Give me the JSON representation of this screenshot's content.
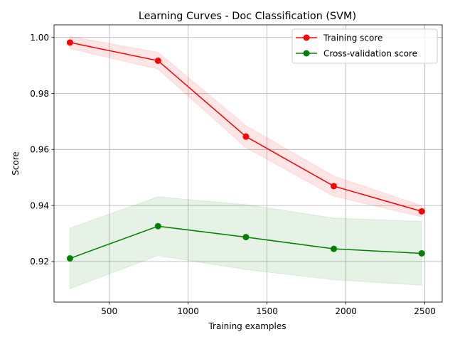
{
  "chart_data": {
    "type": "line",
    "title": "Learning Curves - Doc Classification (SVM)",
    "xlabel": "Training examples",
    "ylabel": "Score",
    "xlim": [
      150,
      2610
    ],
    "ylim": [
      0.9055,
      1.0045
    ],
    "xticks": [
      500,
      1000,
      1500,
      2000,
      2500
    ],
    "xtick_labels": [
      "500",
      "1000",
      "1500",
      "2000",
      "2500"
    ],
    "yticks": [
      0.92,
      0.94,
      0.96,
      0.98,
      1.0
    ],
    "ytick_labels": [
      "0.92",
      "0.94",
      "0.96",
      "0.98",
      "1.00"
    ],
    "grid": true,
    "legend_position": "top-right",
    "x": [
      251,
      809,
      1366,
      1923,
      2480
    ],
    "series": [
      {
        "name": "Training score",
        "color": "#ff0000",
        "band_color": "#ff0000",
        "marker": "circle",
        "values": [
          0.9982,
          0.9917,
          0.9646,
          0.9469,
          0.9379
        ],
        "band_upper": [
          1.0004,
          0.9947,
          0.9685,
          0.9505,
          0.9399
        ],
        "band_lower": [
          0.996,
          0.9887,
          0.9607,
          0.9433,
          0.9359
        ]
      },
      {
        "name": "Cross-validation score",
        "color": "#008000",
        "band_color": "#008000",
        "marker": "circle",
        "values": [
          0.9211,
          0.9326,
          0.9287,
          0.9245,
          0.9229
        ],
        "band_upper": [
          0.9319,
          0.9431,
          0.9403,
          0.9355,
          0.9343
        ],
        "band_lower": [
          0.9103,
          0.9221,
          0.9171,
          0.9135,
          0.9115
        ]
      }
    ]
  }
}
